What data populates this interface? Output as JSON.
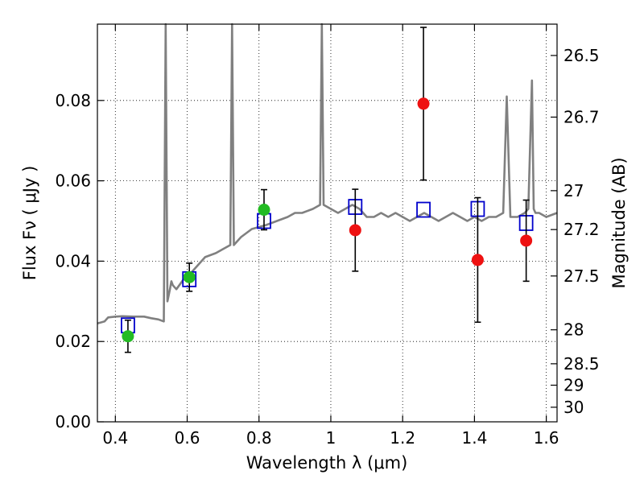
{
  "chart_data": {
    "type": "scatter",
    "title": "",
    "xlabel": "Wavelength  λ (μm)",
    "ylabel": "Flux  Fν  ( μJy )",
    "y2label": "Magnitude (AB)",
    "xlim": [
      0.35,
      1.63
    ],
    "ylim": [
      0.0,
      0.099
    ],
    "grid": true,
    "x_ticks": [
      0.4,
      0.6,
      0.8,
      1.0,
      1.2,
      1.4,
      1.6
    ],
    "x_tick_labels": [
      "0.4",
      "0.6",
      "0.8",
      "1",
      "1.2",
      "1.4",
      "1.6"
    ],
    "y_ticks": [
      0.0,
      0.02,
      0.04,
      0.06,
      0.08
    ],
    "y_tick_labels": [
      "0.00",
      "0.02",
      "0.04",
      "0.06",
      "0.08"
    ],
    "y2_ticks": [
      26.5,
      26.7,
      27,
      27.2,
      27.5,
      28,
      28.5,
      29,
      30
    ],
    "y2_tick_labels": [
      "26.5",
      "26.7",
      "27",
      "27.2",
      "27.5",
      "28",
      "28.5",
      "29",
      "30"
    ],
    "colors": {
      "sed": "#808080",
      "model_points": "#0000cc",
      "detections": "#22bb22",
      "upper_limits": "#ee1111",
      "error_bars": "#000000"
    },
    "model_sed": {
      "x": [
        0.35,
        0.37,
        0.38,
        0.4,
        0.42,
        0.45,
        0.48,
        0.5,
        0.52,
        0.535,
        0.54,
        0.545,
        0.552,
        0.556,
        0.56,
        0.57,
        0.59,
        0.6,
        0.62,
        0.65,
        0.68,
        0.7,
        0.72,
        0.725,
        0.73,
        0.75,
        0.78,
        0.8,
        0.82,
        0.85,
        0.88,
        0.9,
        0.92,
        0.95,
        0.97,
        0.975,
        0.98,
        1.0,
        1.02,
        1.04,
        1.06,
        1.08,
        1.1,
        1.12,
        1.14,
        1.16,
        1.18,
        1.2,
        1.22,
        1.24,
        1.26,
        1.28,
        1.3,
        1.32,
        1.34,
        1.36,
        1.38,
        1.4,
        1.42,
        1.44,
        1.46,
        1.48,
        1.49,
        1.5,
        1.52,
        1.54,
        1.55,
        1.56,
        1.565,
        1.57,
        1.58,
        1.6,
        1.63
      ],
      "y": [
        0.0245,
        0.025,
        0.026,
        0.0262,
        0.0263,
        0.0262,
        0.0262,
        0.0258,
        0.0255,
        0.025,
        0.099,
        0.03,
        0.033,
        0.035,
        0.034,
        0.033,
        0.0355,
        0.036,
        0.038,
        0.041,
        0.042,
        0.043,
        0.044,
        0.099,
        0.044,
        0.046,
        0.048,
        0.0485,
        0.049,
        0.05,
        0.051,
        0.052,
        0.052,
        0.053,
        0.054,
        0.099,
        0.054,
        0.053,
        0.052,
        0.053,
        0.054,
        0.053,
        0.051,
        0.051,
        0.052,
        0.051,
        0.052,
        0.051,
        0.05,
        0.051,
        0.052,
        0.051,
        0.05,
        0.051,
        0.052,
        0.051,
        0.05,
        0.051,
        0.05,
        0.051,
        0.051,
        0.052,
        0.081,
        0.051,
        0.051,
        0.052,
        0.053,
        0.085,
        0.053,
        0.052,
        0.052,
        0.051,
        0.052
      ]
    },
    "series": [
      {
        "marker": "open-square",
        "points": [
          {
            "x": 0.435,
            "y": 0.024
          },
          {
            "x": 0.606,
            "y": 0.0355
          },
          {
            "x": 0.814,
            "y": 0.05
          },
          {
            "x": 1.068,
            "y": 0.0535
          },
          {
            "x": 1.258,
            "y": 0.0528
          },
          {
            "x": 1.409,
            "y": 0.053
          },
          {
            "x": 1.544,
            "y": 0.0495
          }
        ]
      },
      {
        "marker": "filled-circle-green",
        "points": [
          {
            "x": 0.435,
            "y": 0.0213,
            "yerr_low": 0.004,
            "yerr_high": 0.004
          },
          {
            "x": 0.606,
            "y": 0.036,
            "yerr_low": 0.0035,
            "yerr_high": 0.0035
          },
          {
            "x": 0.814,
            "y": 0.0528,
            "yerr_low": 0.005,
            "yerr_high": 0.005
          }
        ]
      },
      {
        "marker": "filled-circle-red",
        "points": [
          {
            "x": 1.068,
            "y": 0.0477,
            "yerr_low": 0.0102,
            "yerr_high": 0.0102
          },
          {
            "x": 1.258,
            "y": 0.0792,
            "yerr_low": 0.019,
            "yerr_high": 0.019
          },
          {
            "x": 1.409,
            "y": 0.0403,
            "yerr_low": 0.0155,
            "yerr_high": 0.0155
          },
          {
            "x": 1.544,
            "y": 0.0451,
            "yerr_low": 0.0101,
            "yerr_high": 0.0101
          }
        ]
      }
    ]
  }
}
